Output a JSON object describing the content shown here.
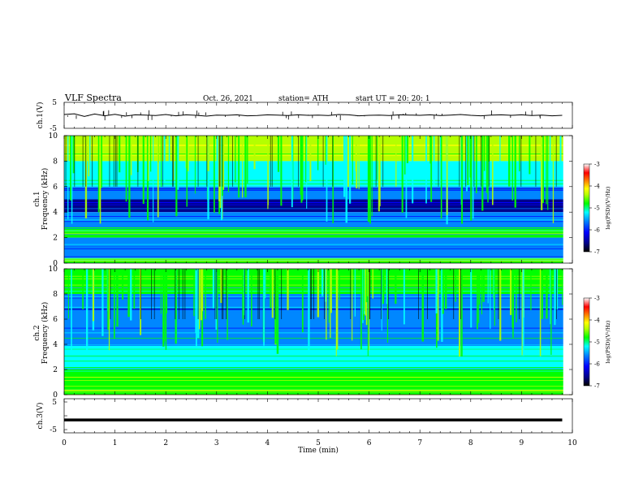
{
  "header": {
    "title": "VLF  Spectra",
    "date": "Oct. 26, 2021",
    "station": "station= ATH",
    "start": "start  UT  =    20: 20: 1"
  },
  "colors": {
    "spectrum": [
      "#000000",
      "#00008b",
      "#0000ff",
      "#0087ff",
      "#00ffff",
      "#00ff00",
      "#b4ff00",
      "#ffff00",
      "#ff8c00",
      "#ff0000",
      "#ffffff"
    ]
  },
  "chart_data": [
    {
      "type": "line",
      "name": "ch1-waveform",
      "ylabel": "ch.1(V)",
      "ylim": [
        -5,
        5
      ],
      "yticks": [
        5,
        -5
      ],
      "xlim": [
        0,
        10
      ],
      "x": [
        0.0,
        0.2,
        0.4,
        0.6,
        0.8,
        1.0,
        1.2,
        1.4,
        1.6,
        1.8,
        2.0,
        2.2,
        2.4,
        2.6,
        2.8,
        3.0,
        3.2,
        3.4,
        3.6,
        3.8,
        4.0,
        4.2,
        4.4,
        4.6,
        4.8,
        5.0,
        5.2,
        5.4,
        5.6,
        5.8,
        6.0,
        6.2,
        6.4,
        6.6,
        6.8,
        7.0,
        7.2,
        7.4,
        7.6,
        7.8,
        8.0,
        8.2,
        8.4,
        8.6,
        8.8,
        9.0,
        9.2,
        9.4,
        9.6,
        9.8
      ],
      "y": [
        0.3,
        0.6,
        -0.4,
        0.5,
        -0.2,
        0.4,
        -0.3,
        0.2,
        0.1,
        -0.1,
        0.3,
        -0.2,
        0.2,
        0.0,
        -0.3,
        0.1,
        0.0,
        0.2,
        -0.2,
        -0.1,
        0.2,
        0.1,
        -0.1,
        0.2,
        0.0,
        0.1,
        -0.1,
        0.3,
        0.2,
        -0.2,
        0.0,
        0.1,
        -0.1,
        0.2,
        0.1,
        0.0,
        0.2,
        -0.1,
        0.1,
        0.3,
        0.0,
        -0.2,
        0.1,
        0.2,
        0.0,
        0.2,
        -0.1,
        0.1,
        -0.2,
        0.0
      ]
    },
    {
      "type": "heatmap",
      "name": "ch1-spectrogram",
      "ylabel": "ch.1\nFrequency (kHz)",
      "ylim": [
        0,
        10
      ],
      "yticks": [
        0,
        2,
        4,
        6,
        8,
        10
      ],
      "xlim": [
        0,
        10
      ],
      "colorbar": {
        "label": "log(PSD)(V²/Hz)",
        "range": [
          -7,
          -3
        ],
        "ticks": [
          -3,
          -4,
          -5,
          -6,
          -7
        ]
      },
      "bands": [
        {
          "f": [
            8.0,
            10.0
          ],
          "level": 0.65
        },
        {
          "f": [
            6.0,
            8.0
          ],
          "level": 0.42
        },
        {
          "f": [
            5.0,
            6.0
          ],
          "level": 0.28
        },
        {
          "f": [
            4.0,
            5.0
          ],
          "level": 0.12
        },
        {
          "f": [
            2.8,
            4.0
          ],
          "level": 0.3
        },
        {
          "f": [
            2.0,
            2.8
          ],
          "level": 0.5
        },
        {
          "f": [
            0.4,
            2.0
          ],
          "level": 0.3
        },
        {
          "f": [
            0.0,
            0.4
          ],
          "level": 0.55
        }
      ]
    },
    {
      "type": "heatmap",
      "name": "ch2-spectrogram",
      "ylabel": "ch.2\nFrequency (kHz)",
      "ylim": [
        0,
        10
      ],
      "yticks": [
        0,
        2,
        4,
        6,
        8,
        10
      ],
      "xlim": [
        0,
        10
      ],
      "colorbar": {
        "label": "log(PSD)(V²/Hz)",
        "range": [
          -7,
          -3
        ],
        "ticks": [
          -3,
          -4,
          -5,
          -6,
          -7
        ]
      },
      "bands": [
        {
          "f": [
            8.0,
            10.0
          ],
          "level": 0.5
        },
        {
          "f": [
            6.0,
            8.0
          ],
          "level": 0.3
        },
        {
          "f": [
            4.0,
            6.0
          ],
          "level": 0.32
        },
        {
          "f": [
            3.0,
            4.0
          ],
          "level": 0.4
        },
        {
          "f": [
            2.0,
            3.0
          ],
          "level": 0.45
        },
        {
          "f": [
            0.4,
            2.0
          ],
          "level": 0.55
        },
        {
          "f": [
            0.0,
            0.4
          ],
          "level": 0.6
        }
      ]
    },
    {
      "type": "line",
      "name": "ch3-waveform",
      "ylabel": "ch.3(V)",
      "ylim": [
        -5,
        5
      ],
      "yticks": [
        5,
        0,
        -5
      ],
      "xlim": [
        0,
        10
      ],
      "x": [
        0,
        9.8
      ],
      "y": [
        -1.5,
        -1.5
      ],
      "xlabel": "Time  (min)",
      "xticks": [
        0,
        1,
        2,
        3,
        4,
        5,
        6,
        7,
        8,
        9,
        10
      ]
    }
  ]
}
